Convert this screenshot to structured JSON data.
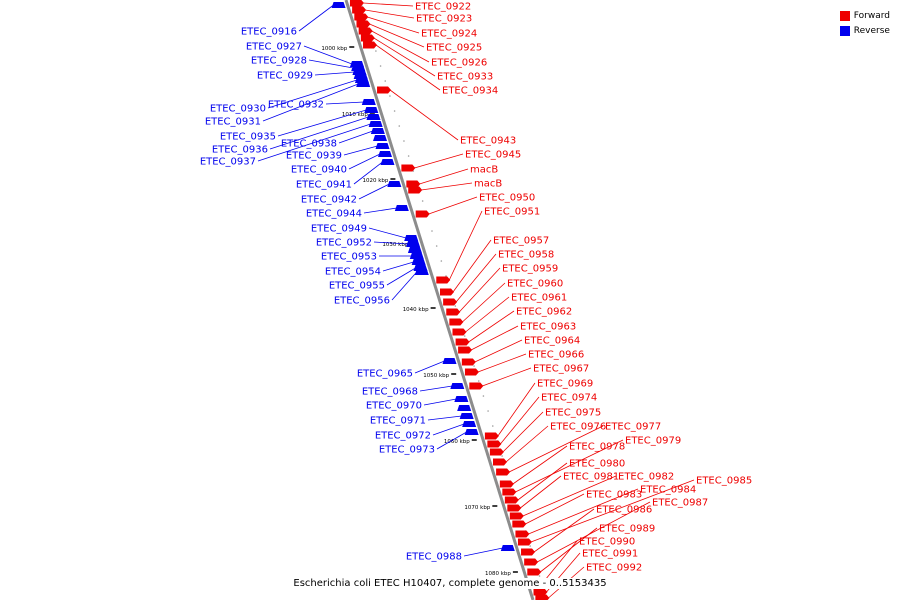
{
  "colors": {
    "forward": "#ee0000",
    "reverse": "#0000ee",
    "backbone": "#8c8c8c",
    "tick": "#000000"
  },
  "legend": {
    "forward_label": "Forward",
    "reverse_label": "Reverse"
  },
  "caption": "Escherichia coli ETEC H10407, complete genome - 0..5153435",
  "ticks": [
    "1000 kbp",
    "1010 kbp",
    "1020 kbp",
    "1030 kbp",
    "1040 kbp",
    "1050 kbp",
    "1060 kbp",
    "1070 kbp",
    "1080 kbp"
  ],
  "reverse_genes": [
    "ETEC_0916",
    "ETEC_0927",
    "ETEC_0928",
    "ETEC_0929",
    "ETEC_0930",
    "ETEC_0931",
    "ETEC_0932",
    "ETEC_0935",
    "ETEC_0936",
    "ETEC_0937",
    "ETEC_0938",
    "ETEC_0939",
    "ETEC_0940",
    "ETEC_0941",
    "ETEC_0942",
    "ETEC_0944",
    "ETEC_0949",
    "ETEC_0952",
    "ETEC_0953",
    "ETEC_0954",
    "ETEC_0955",
    "ETEC_0956",
    "ETEC_0965",
    "ETEC_0968",
    "ETEC_0970",
    "ETEC_0971",
    "ETEC_0972",
    "ETEC_0973",
    "ETEC_0988"
  ],
  "forward_genes": [
    "ETEC_0922",
    "ETEC_0923",
    "ETEC_0924",
    "ETEC_0925",
    "ETEC_0926",
    "ETEC_0933",
    "ETEC_0934",
    "ETEC_0943",
    "ETEC_0945",
    "macB",
    "macB",
    "ETEC_0950",
    "ETEC_0951",
    "ETEC_0957",
    "ETEC_0958",
    "ETEC_0959",
    "ETEC_0960",
    "ETEC_0961",
    "ETEC_0962",
    "ETEC_0963",
    "ETEC_0964",
    "ETEC_0966",
    "ETEC_0967",
    "ETEC_0969",
    "ETEC_0974",
    "ETEC_0975",
    "ETEC_0976",
    "ETEC_0977",
    "ETEC_0978",
    "ETEC_0979",
    "ETEC_0980",
    "ETEC_0981",
    "ETEC_0982",
    "ETEC_0983",
    "ETEC_0984",
    "ETEC_0985",
    "ETEC_0986",
    "ETEC_0987",
    "ETEC_0989",
    "ETEC_0990",
    "ETEC_0991",
    "ETEC_0992"
  ]
}
